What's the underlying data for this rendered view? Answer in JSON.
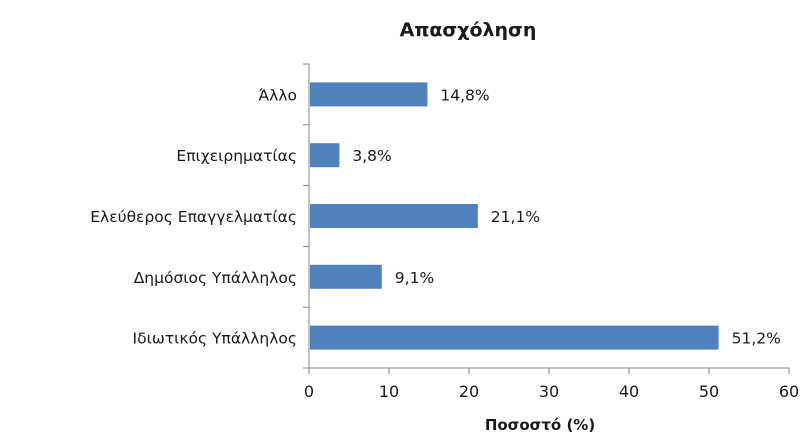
{
  "chart_data": {
    "type": "bar",
    "orientation": "horizontal",
    "title": "Απασχόληση",
    "xlabel": "Ποσοστό (%)",
    "ylabel": "",
    "categories": [
      "Άλλο",
      "Επιχειρηματίας",
      "Ελεύθερος Επαγγελματίας",
      "Δημόσιος Υπάλληλος",
      "Ιδιωτικός Υπάλληλος"
    ],
    "values": [
      14.8,
      3.8,
      21.1,
      9.1,
      51.2
    ],
    "data_labels": [
      "14,8%",
      "3,8%",
      "21,1%",
      "9,1%",
      "51,2%"
    ],
    "xlim": [
      0,
      60
    ],
    "xticks": [
      0,
      10,
      20,
      30,
      40,
      50,
      60
    ],
    "xtick_labels": [
      "0",
      "10",
      "20",
      "30",
      "40",
      "50",
      "60"
    ],
    "grid": false,
    "legend": "none",
    "bar_color": "#4f81bd"
  }
}
